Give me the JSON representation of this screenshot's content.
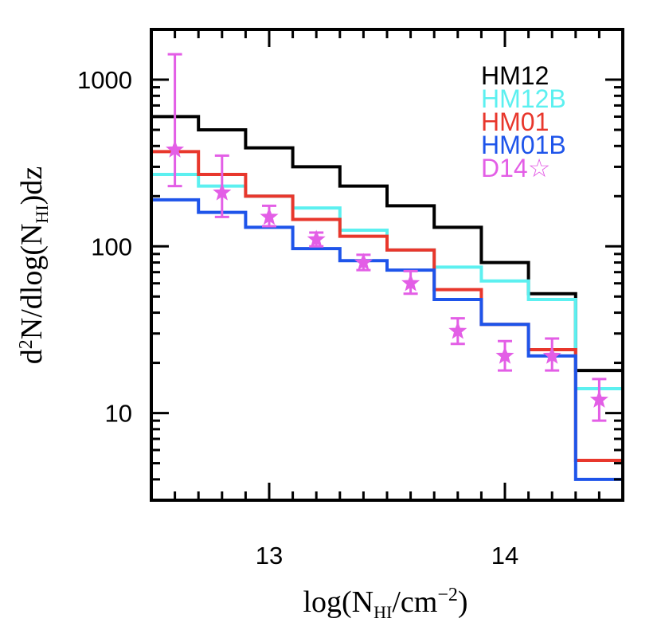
{
  "chart_data": {
    "type": "line",
    "step": true,
    "xlabel": "log(N_HI/cm^-2)",
    "ylabel": "d2N/dlog(N_HI)dz",
    "xlabel_parts": {
      "prefix": "log(N",
      "sub": "HI",
      "suffix": "/cm",
      "sup": "−2",
      "close": ")"
    },
    "ylabel_parts": {
      "d": "d",
      "sup": "2",
      "mid": "N/dlog(N",
      "sub": "HI",
      "end": ")dz"
    },
    "xlim": [
      12.5,
      14.5
    ],
    "ylim": [
      3,
      2000
    ],
    "yscale": "log",
    "xticks": [
      13,
      14
    ],
    "xtick_labels": [
      "13",
      "14"
    ],
    "yticks": [
      10,
      100,
      1000
    ],
    "ytick_labels": [
      "10",
      "100",
      "1000"
    ],
    "bin_edges": [
      12.5,
      12.7,
      12.9,
      13.1,
      13.3,
      13.5,
      13.7,
      13.9,
      14.1,
      14.3,
      14.5
    ],
    "legend_position": "top-right",
    "series": [
      {
        "name": "HM12",
        "color": "#000000",
        "values": [
          600,
          500,
          390,
          300,
          230,
          175,
          130,
          80,
          52,
          18
        ]
      },
      {
        "name": "HM12B",
        "color": "#5cf0f0",
        "values": [
          270,
          230,
          200,
          170,
          125,
          95,
          75,
          62,
          48,
          14
        ]
      },
      {
        "name": "HM01",
        "color": "#e8372c",
        "values": [
          370,
          270,
          200,
          145,
          115,
          95,
          55,
          34,
          24,
          5.2
        ]
      },
      {
        "name": "HM01B",
        "color": "#1e54ea",
        "values": [
          190,
          160,
          130,
          97,
          82,
          72,
          48,
          34,
          22,
          4
        ]
      }
    ],
    "points": {
      "name": "D14",
      "marker": "☆",
      "color": "#e35ee6",
      "x": [
        12.6,
        12.8,
        13.0,
        13.2,
        13.4,
        13.6,
        13.8,
        14.0,
        14.2,
        14.4
      ],
      "y": [
        380,
        210,
        150,
        110,
        80,
        60,
        31,
        22,
        22,
        12
      ],
      "yerr_low": [
        230,
        150,
        132,
        100,
        72,
        52,
        26,
        18,
        18,
        9
      ],
      "yerr_high": [
        1420,
        350,
        175,
        121,
        89,
        71,
        37,
        27,
        28,
        16
      ]
    }
  }
}
